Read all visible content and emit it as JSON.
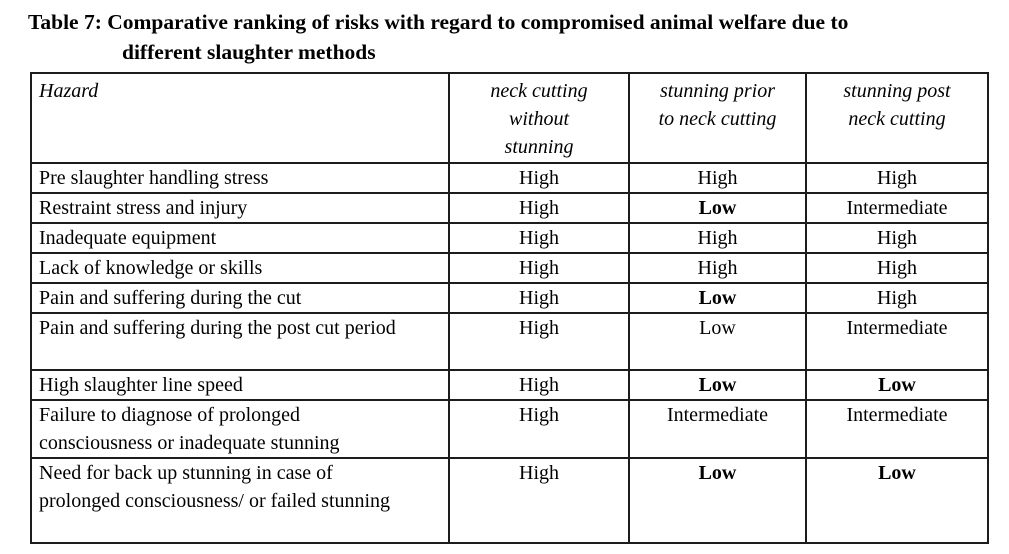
{
  "caption": {
    "label": "Table 7:",
    "title": "Comparative ranking of risks with regard to compromised animal welfare due to\ndifferent slaughter methods"
  },
  "table": {
    "columns": [
      "Hazard",
      "neck cutting\nwithout\nstunning",
      "stunning prior\nto neck cutting",
      "stunning post\nneck cutting"
    ],
    "rows": [
      {
        "hazard": "Pre slaughter handling stress",
        "values": [
          {
            "text": "High",
            "bold": false
          },
          {
            "text": "High",
            "bold": false
          },
          {
            "text": "High",
            "bold": false
          }
        ]
      },
      {
        "hazard": "Restraint stress and injury",
        "values": [
          {
            "text": "High",
            "bold": false
          },
          {
            "text": "Low",
            "bold": true
          },
          {
            "text": "Intermediate",
            "bold": false
          }
        ]
      },
      {
        "hazard": "Inadequate equipment",
        "values": [
          {
            "text": "High",
            "bold": false
          },
          {
            "text": "High",
            "bold": false
          },
          {
            "text": "High",
            "bold": false
          }
        ]
      },
      {
        "hazard": "Lack of knowledge or skills",
        "values": [
          {
            "text": "High",
            "bold": false
          },
          {
            "text": "High",
            "bold": false
          },
          {
            "text": "High",
            "bold": false
          }
        ]
      },
      {
        "hazard": "Pain and suffering during the cut",
        "values": [
          {
            "text": "High",
            "bold": false
          },
          {
            "text": "Low",
            "bold": true
          },
          {
            "text": "High",
            "bold": false
          }
        ]
      },
      {
        "hazard": "Pain and suffering during the post cut period",
        "values": [
          {
            "text": "High",
            "bold": false
          },
          {
            "text": "Low",
            "bold": false
          },
          {
            "text": "Intermediate",
            "bold": false
          }
        ]
      },
      {
        "hazard": "High slaughter line speed",
        "values": [
          {
            "text": "High",
            "bold": false
          },
          {
            "text": "Low",
            "bold": true
          },
          {
            "text": "Low",
            "bold": true
          }
        ]
      },
      {
        "hazard": "Failure to diagnose of prolonged consciousness or inadequate stunning",
        "values": [
          {
            "text": "High",
            "bold": false
          },
          {
            "text": "Intermediate",
            "bold": false
          },
          {
            "text": "Intermediate",
            "bold": false
          }
        ]
      },
      {
        "hazard": "Need for back up stunning in case of prolonged consciousness/ or failed stunning",
        "values": [
          {
            "text": "High",
            "bold": false
          },
          {
            "text": "Low",
            "bold": true
          },
          {
            "text": "Low",
            "bold": true
          }
        ]
      }
    ]
  },
  "colors": {
    "text": "#000000",
    "border": "#1c1c1c",
    "background": "#ffffff"
  }
}
